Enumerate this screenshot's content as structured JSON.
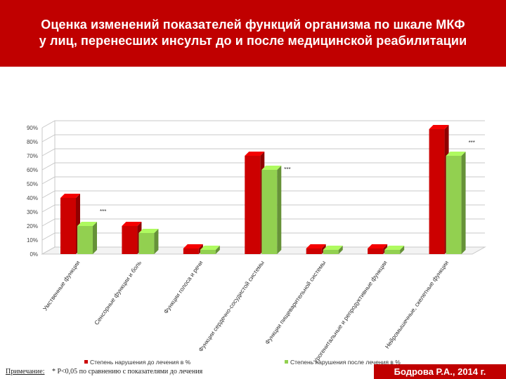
{
  "header": {
    "title_line1": "Оценка изменений  показателей функций организма по шкале МКФ",
    "title_line2": "у  лиц, перенесших инсульт до и после  медицинской реабилитации"
  },
  "colors": {
    "header_bg": "#c00000",
    "series_before": "#cc0000",
    "series_after": "#92d050"
  },
  "chart_data": {
    "type": "bar",
    "categories": [
      "Умственные функции",
      "Сенсорные функции и боль",
      "Функции голоса и речи",
      "Функции сердечно-сосудистой системы",
      "Функции пищеварительной системы",
      "Урогенитальные и репродуктивные функции",
      "Нейромышечные, скелетные функции"
    ],
    "series": [
      {
        "name": "Степень нарушения до лечения в  %",
        "values": [
          40,
          20,
          4,
          70,
          4,
          4,
          89
        ]
      },
      {
        "name": "Степень нарушения после лечения в %",
        "values": [
          20,
          15,
          3,
          60,
          3,
          3,
          70
        ]
      }
    ],
    "significance_markers": [
      "***",
      "",
      "",
      "***",
      "",
      "",
      "***"
    ],
    "ylim": [
      0,
      90
    ],
    "yticks": [
      "0%",
      "10%",
      "20%",
      "30%",
      "40%",
      "50%",
      "60%",
      "70%",
      "80%",
      "90%"
    ],
    "grid": true,
    "legend_position": "bottom"
  },
  "footer": {
    "note_label": "Примечание:",
    "note_text": "* P<0,05 по сравнению с показателями до лечения",
    "author": "Бодрова Р.А.,  2014 г."
  }
}
